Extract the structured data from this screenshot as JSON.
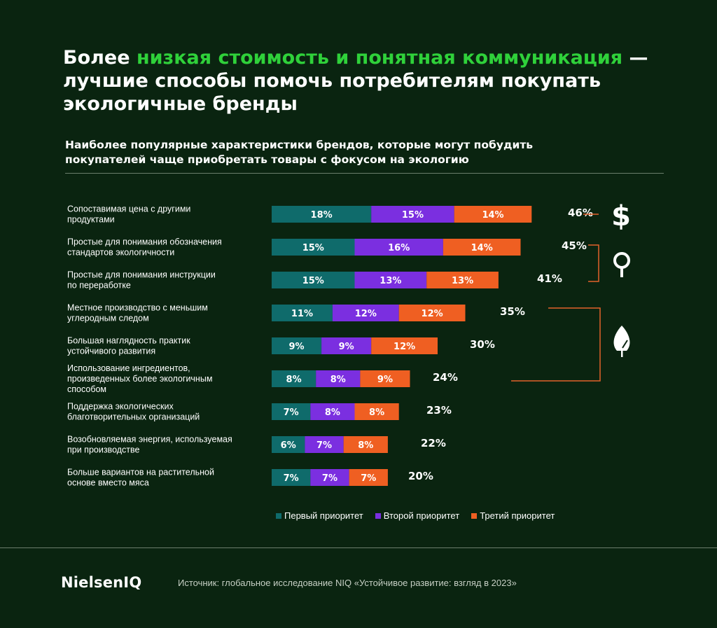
{
  "headline": {
    "part1": "Более ",
    "highlight": "низкая стоимость и понятная коммуникация",
    "part2": " — лучшие способы помочь потребителям покупать экологичные бренды"
  },
  "subtitle": "Наиболее популярные характеристики брендов, которые могут побудить покупателей чаще приобретать товары с фокусом на экологию",
  "colors": {
    "background": "#0a2410",
    "first": "#0f6b6b",
    "second": "#7b2fe0",
    "third": "#ef5f22",
    "highlight": "#2fd13a",
    "bracket": "#e2612a"
  },
  "chart_data": {
    "type": "bar",
    "orientation": "horizontal-stacked",
    "categories": [
      [
        "Сопоставимая цена с другими",
        "продуктами"
      ],
      [
        "Простые для понимания обозначения",
        "стандартов экологичности"
      ],
      [
        "Простые для понимания инструкции",
        "по переработке"
      ],
      [
        "Местное производство с меньшим",
        "углеродным следом"
      ],
      [
        "Большая наглядность практик",
        "устойчивого развития"
      ],
      [
        "Использование ингредиентов,",
        "произведенных более экологичным",
        "способом"
      ],
      [
        "Поддержка экологических",
        "благотворительных организаций"
      ],
      [
        "Возобновляемая энергия, используемая",
        "при производстве"
      ],
      [
        "Больше вариантов на растительной",
        "основе вместо мяса"
      ]
    ],
    "series": [
      {
        "name": "Первый приоритет",
        "values": [
          18,
          15,
          15,
          11,
          9,
          8,
          7,
          6,
          7
        ]
      },
      {
        "name": "Второй приоритет",
        "values": [
          15,
          16,
          13,
          12,
          9,
          8,
          8,
          7,
          7
        ]
      },
      {
        "name": "Третий приоритет",
        "values": [
          14,
          14,
          13,
          12,
          12,
          9,
          8,
          8,
          7
        ]
      }
    ],
    "totals": [
      46,
      45,
      41,
      35,
      30,
      24,
      23,
      22,
      20
    ],
    "value_suffix": "%",
    "groups": [
      {
        "icon": "dollar-icon",
        "rows": [
          0
        ]
      },
      {
        "icon": "map-pin-icon",
        "rows": [
          1,
          2
        ]
      },
      {
        "icon": "leaf-icon",
        "rows": [
          3,
          4,
          5
        ]
      }
    ],
    "legend_position": "bottom"
  },
  "legend": {
    "first": "Первый приоритет",
    "second": "Второй приоритет",
    "third": "Третий приоритет"
  },
  "footer": {
    "logo": "NielsenIQ",
    "source": "Источник: глобальное исследование NIQ «Устойчивое развитие: взгляд в 2023»"
  }
}
